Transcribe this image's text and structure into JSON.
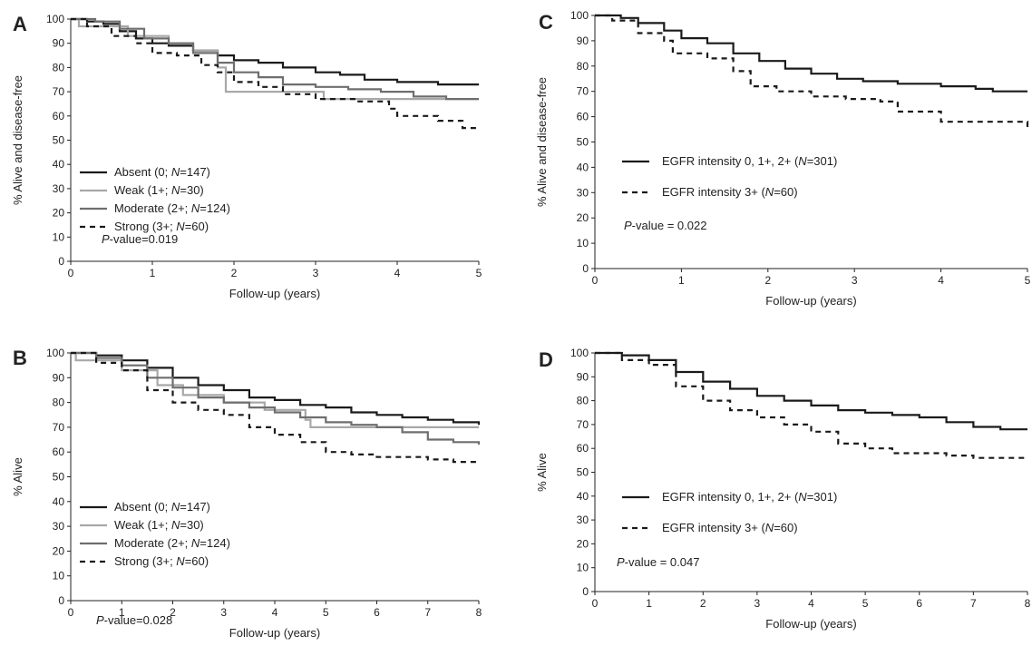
{
  "chart_data": [
    {
      "panel": "A",
      "type": "line",
      "title": "",
      "xlabel": "Follow-up (years)",
      "ylabel": "% Alive and disease-free",
      "xlim": [
        0,
        5
      ],
      "ylim": [
        0,
        100
      ],
      "xticks": [
        "0",
        "1",
        "2",
        "3",
        "4",
        "5"
      ],
      "yticks": [
        "0",
        "10",
        "20",
        "30",
        "40",
        "50",
        "60",
        "70",
        "80",
        "90",
        "100"
      ],
      "legend_position": "bottom-left",
      "annotation": {
        "italic": "P",
        "text": "-value=0.019"
      },
      "series": [
        {
          "name": {
            "a": "Absent (0; ",
            "b": "N",
            "c": "=147)"
          },
          "color": "#1a1a1a",
          "dash": "solid",
          "points": [
            [
              0,
              100
            ],
            [
              0.2,
              99
            ],
            [
              0.4,
              98
            ],
            [
              0.6,
              95
            ],
            [
              0.8,
              92
            ],
            [
              1,
              90
            ],
            [
              1.2,
              89
            ],
            [
              1.5,
              87
            ],
            [
              1.8,
              85
            ],
            [
              2,
              83
            ],
            [
              2.3,
              82
            ],
            [
              2.6,
              80
            ],
            [
              3,
              78
            ],
            [
              3.3,
              77
            ],
            [
              3.6,
              75
            ],
            [
              4,
              74
            ],
            [
              4.5,
              73
            ],
            [
              5,
              73
            ]
          ]
        },
        {
          "name": {
            "a": "Weak (1+; ",
            "b": "N",
            "c": "=30)"
          },
          "color": "#a8a8a8",
          "dash": "solid",
          "points": [
            [
              0,
              100
            ],
            [
              0.1,
              97
            ],
            [
              0.6,
              97
            ],
            [
              0.7,
              93
            ],
            [
              1.2,
              90
            ],
            [
              1.5,
              87
            ],
            [
              1.8,
              80
            ],
            [
              1.9,
              70
            ],
            [
              2.3,
              70
            ],
            [
              2.9,
              70
            ],
            [
              3.1,
              67
            ],
            [
              5,
              67
            ]
          ]
        },
        {
          "name": {
            "a": "Moderate (2+; ",
            "b": "N",
            "c": "=124)"
          },
          "color": "#6e6e6e",
          "dash": "solid",
          "points": [
            [
              0,
              100
            ],
            [
              0.3,
              99
            ],
            [
              0.6,
              96
            ],
            [
              0.9,
              92
            ],
            [
              1.2,
              90
            ],
            [
              1.5,
              86
            ],
            [
              1.8,
              82
            ],
            [
              2,
              78
            ],
            [
              2.3,
              76
            ],
            [
              2.6,
              73
            ],
            [
              3,
              72
            ],
            [
              3.4,
              71
            ],
            [
              3.8,
              70
            ],
            [
              4.2,
              68
            ],
            [
              4.6,
              67
            ],
            [
              5,
              67
            ]
          ]
        },
        {
          "name": {
            "a": "Strong (3+; ",
            "b": "N",
            "c": "=60)"
          },
          "color": "#1a1a1a",
          "dash": "dashed",
          "points": [
            [
              0,
              100
            ],
            [
              0.2,
              97
            ],
            [
              0.5,
              93
            ],
            [
              0.8,
              90
            ],
            [
              1,
              86
            ],
            [
              1.3,
              85
            ],
            [
              1.6,
              81
            ],
            [
              1.8,
              78
            ],
            [
              2,
              74
            ],
            [
              2.3,
              72
            ],
            [
              2.6,
              69
            ],
            [
              3,
              67
            ],
            [
              3.5,
              66
            ],
            [
              3.9,
              63
            ],
            [
              4,
              60
            ],
            [
              4.5,
              58
            ],
            [
              4.8,
              55
            ],
            [
              5,
              55
            ]
          ]
        }
      ]
    },
    {
      "panel": "B",
      "type": "line",
      "title": "",
      "xlabel": "Follow-up (years)",
      "ylabel": "% Alive",
      "xlim": [
        0,
        8
      ],
      "ylim": [
        0,
        100
      ],
      "xticks": [
        "0",
        "1",
        "2",
        "3",
        "4",
        "5",
        "6",
        "7",
        "8"
      ],
      "yticks": [
        "0",
        "10",
        "20",
        "30",
        "40",
        "50",
        "60",
        "70",
        "80",
        "90",
        "100"
      ],
      "legend_position": "bottom-left",
      "annotation": {
        "italic": "P",
        "text": "-value=0.028"
      },
      "series": [
        {
          "name": {
            "a": "Absent (0; ",
            "b": "N",
            "c": "=147)"
          },
          "color": "#1a1a1a",
          "dash": "solid",
          "points": [
            [
              0,
              100
            ],
            [
              0.5,
              99
            ],
            [
              1,
              97
            ],
            [
              1.5,
              94
            ],
            [
              2,
              90
            ],
            [
              2.5,
              87
            ],
            [
              3,
              85
            ],
            [
              3.5,
              82
            ],
            [
              4,
              81
            ],
            [
              4.5,
              79
            ],
            [
              5,
              78
            ],
            [
              5.5,
              76
            ],
            [
              6,
              75
            ],
            [
              6.5,
              74
            ],
            [
              7,
              73
            ],
            [
              7.5,
              72
            ],
            [
              8,
              71
            ]
          ]
        },
        {
          "name": {
            "a": "Weak (1+; ",
            "b": "N",
            "c": "=30)"
          },
          "color": "#a8a8a8",
          "dash": "solid",
          "points": [
            [
              0,
              100
            ],
            [
              0.1,
              97
            ],
            [
              0.9,
              97
            ],
            [
              1,
              93
            ],
            [
              1.6,
              93
            ],
            [
              1.7,
              87
            ],
            [
              2.2,
              83
            ],
            [
              3,
              80
            ],
            [
              3.8,
              77
            ],
            [
              4.6,
              73
            ],
            [
              4.7,
              70
            ],
            [
              6.5,
              70
            ],
            [
              8,
              70
            ]
          ]
        },
        {
          "name": {
            "a": "Moderate (2+; ",
            "b": "N",
            "c": "=124)"
          },
          "color": "#6e6e6e",
          "dash": "solid",
          "points": [
            [
              0,
              100
            ],
            [
              0.5,
              98
            ],
            [
              1,
              95
            ],
            [
              1.5,
              90
            ],
            [
              2,
              86
            ],
            [
              2.5,
              82
            ],
            [
              3,
              80
            ],
            [
              3.5,
              78
            ],
            [
              4,
              76
            ],
            [
              4.5,
              74
            ],
            [
              5,
              72
            ],
            [
              5.5,
              71
            ],
            [
              6,
              70
            ],
            [
              6.5,
              68
            ],
            [
              7,
              65
            ],
            [
              7.5,
              64
            ],
            [
              8,
              63
            ]
          ]
        },
        {
          "name": {
            "a": "Strong (3+; ",
            "b": "N",
            "c": "=60)"
          },
          "color": "#1a1a1a",
          "dash": "dashed",
          "points": [
            [
              0,
              100
            ],
            [
              0.5,
              96
            ],
            [
              1,
              93
            ],
            [
              1.5,
              85
            ],
            [
              2,
              80
            ],
            [
              2.5,
              77
            ],
            [
              3,
              75
            ],
            [
              3.5,
              70
            ],
            [
              4,
              67
            ],
            [
              4.5,
              64
            ],
            [
              5,
              60
            ],
            [
              5.5,
              59
            ],
            [
              6,
              58
            ],
            [
              7,
              57
            ],
            [
              7.5,
              56
            ],
            [
              8,
              56
            ]
          ]
        }
      ]
    },
    {
      "panel": "C",
      "type": "line",
      "title": "",
      "xlabel": "Follow-up (years)",
      "ylabel": "% Alive and disease-free",
      "xlim": [
        0,
        5
      ],
      "ylim": [
        0,
        100
      ],
      "xticks": [
        "0",
        "1",
        "2",
        "3",
        "4",
        "5"
      ],
      "yticks": [
        "0",
        "10",
        "20",
        "30",
        "40",
        "50",
        "60",
        "70",
        "80",
        "90",
        "100"
      ],
      "legend_position": "middle-left",
      "annotation": {
        "italic": "P",
        "text": "-value = 0.022"
      },
      "series": [
        {
          "name": {
            "a": "EGFR intensity 0, 1+, 2+ (",
            "b": "N",
            "c": "=301)"
          },
          "color": "#1a1a1a",
          "dash": "solid",
          "points": [
            [
              0,
              100
            ],
            [
              0.3,
              99
            ],
            [
              0.5,
              97
            ],
            [
              0.8,
              94
            ],
            [
              1,
              91
            ],
            [
              1.3,
              89
            ],
            [
              1.6,
              85
            ],
            [
              1.9,
              82
            ],
            [
              2.2,
              79
            ],
            [
              2.5,
              77
            ],
            [
              2.8,
              75
            ],
            [
              3.1,
              74
            ],
            [
              3.5,
              73
            ],
            [
              4,
              72
            ],
            [
              4.4,
              71
            ],
            [
              4.6,
              70
            ],
            [
              5,
              70
            ]
          ]
        },
        {
          "name": {
            "a": "EGFR intensity 3+ (",
            "b": "N",
            "c": "=60)"
          },
          "color": "#1a1a1a",
          "dash": "dashed",
          "points": [
            [
              0,
              100
            ],
            [
              0.2,
              98
            ],
            [
              0.5,
              93
            ],
            [
              0.8,
              90
            ],
            [
              0.9,
              85
            ],
            [
              1.3,
              83
            ],
            [
              1.6,
              78
            ],
            [
              1.8,
              72
            ],
            [
              2.1,
              70
            ],
            [
              2.5,
              68
            ],
            [
              2.9,
              67
            ],
            [
              3.3,
              66
            ],
            [
              3.5,
              62
            ],
            [
              4,
              58
            ],
            [
              4.6,
              58
            ],
            [
              5,
              55
            ]
          ]
        }
      ]
    },
    {
      "panel": "D",
      "type": "line",
      "title": "",
      "xlabel": "Follow-up (years)",
      "ylabel": "% Alive",
      "xlim": [
        0,
        8
      ],
      "ylim": [
        0,
        100
      ],
      "xticks": [
        "0",
        "1",
        "2",
        "3",
        "4",
        "5",
        "6",
        "7",
        "8"
      ],
      "yticks": [
        "0",
        "10",
        "20",
        "30",
        "40",
        "50",
        "60",
        "70",
        "80",
        "90",
        "100"
      ],
      "legend_position": "lower-left",
      "annotation": {
        "italic": "P",
        "text": "-value = 0.047"
      },
      "series": [
        {
          "name": {
            "a": "EGFR intensity 0, 1+, 2+ (",
            "b": "N",
            "c": "=301)"
          },
          "color": "#1a1a1a",
          "dash": "solid",
          "points": [
            [
              0,
              100
            ],
            [
              0.5,
              99
            ],
            [
              1,
              97
            ],
            [
              1.5,
              92
            ],
            [
              2,
              88
            ],
            [
              2.5,
              85
            ],
            [
              3,
              82
            ],
            [
              3.5,
              80
            ],
            [
              4,
              78
            ],
            [
              4.5,
              76
            ],
            [
              5,
              75
            ],
            [
              5.5,
              74
            ],
            [
              6,
              73
            ],
            [
              6.5,
              71
            ],
            [
              7,
              69
            ],
            [
              7.5,
              68
            ],
            [
              8,
              68
            ]
          ]
        },
        {
          "name": {
            "a": "EGFR intensity 3+ (",
            "b": "N",
            "c": "=60)"
          },
          "color": "#1a1a1a",
          "dash": "dashed",
          "points": [
            [
              0,
              100
            ],
            [
              0.5,
              97
            ],
            [
              1,
              95
            ],
            [
              1.5,
              86
            ],
            [
              2,
              80
            ],
            [
              2.5,
              76
            ],
            [
              3,
              73
            ],
            [
              3.5,
              70
            ],
            [
              4,
              67
            ],
            [
              4.5,
              62
            ],
            [
              5,
              60
            ],
            [
              5.5,
              58
            ],
            [
              6,
              58
            ],
            [
              6.5,
              57
            ],
            [
              7,
              56
            ],
            [
              8,
              56
            ]
          ]
        }
      ]
    }
  ]
}
